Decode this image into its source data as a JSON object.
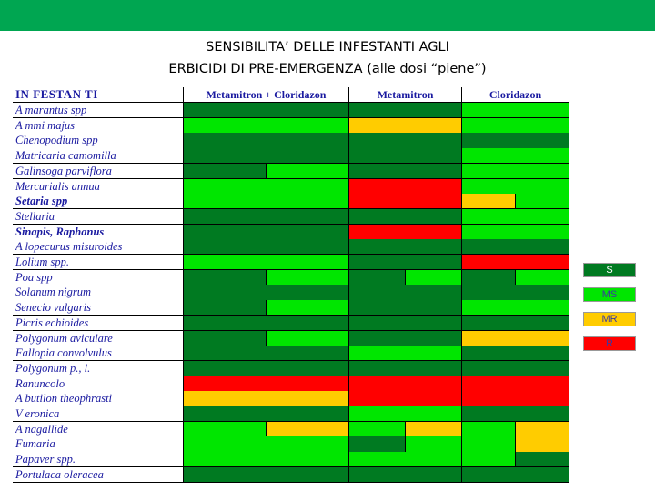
{
  "title": {
    "line1": "SENSIBILITA’ DELLE INFESTANTI AGLI",
    "line2": "ERBICIDI DI PRE-EMERGENZA (alle dosi “piene”)"
  },
  "colors": {
    "S": "#007a21",
    "MS": "#00e600",
    "MR": "#ffcc00",
    "R": "#ff0000"
  },
  "table": {
    "header": [
      "IN FESTAN TI",
      "Metamitron + Cloridazon",
      "Metamitron",
      "Cloridazon"
    ],
    "rows": [
      {
        "name": "A marantus spp",
        "bold": false,
        "cells": [
          [
            "S"
          ],
          [
            "S"
          ],
          [
            "MS"
          ]
        ]
      },
      {
        "name": "A mmi majus",
        "bold": false,
        "cells": [
          [
            "MS"
          ],
          [
            "MR"
          ],
          [
            "MS"
          ]
        ]
      },
      {
        "name": "Chenopodium spp",
        "bold": false,
        "cells": [
          [
            "S"
          ],
          [
            "S"
          ],
          [
            "S"
          ]
        ]
      },
      {
        "name": "Matricaria camomilla",
        "bold": false,
        "cells": [
          [
            "S"
          ],
          [
            "S"
          ],
          [
            "MS"
          ]
        ]
      },
      {
        "name": "Galinsoga parviflora",
        "bold": false,
        "cells": [
          [
            "S",
            "MS"
          ],
          [
            "S"
          ],
          [
            "MS"
          ]
        ]
      },
      {
        "name": "Mercurialis annua",
        "bold": false,
        "cells": [
          [
            "MS"
          ],
          [
            "R"
          ],
          [
            "MS"
          ]
        ]
      },
      {
        "name": "Setaria spp",
        "bold": true,
        "cells": [
          [
            "MS"
          ],
          [
            "R"
          ],
          [
            "MR",
            "MS"
          ]
        ]
      },
      {
        "name": "Stellaria",
        "bold": false,
        "cells": [
          [
            "S"
          ],
          [
            "S"
          ],
          [
            "MS"
          ]
        ]
      },
      {
        "name": "Sinapis, Raphanus",
        "bold": true,
        "cells": [
          [
            "S"
          ],
          [
            "R"
          ],
          [
            "MS"
          ]
        ]
      },
      {
        "name": "A lopecurus misuroides",
        "bold": false,
        "cells": [
          [
            "S"
          ],
          [
            "S"
          ],
          [
            "S"
          ]
        ]
      },
      {
        "name": "Lolium spp.",
        "bold": false,
        "cells": [
          [
            "MS"
          ],
          [
            "S"
          ],
          [
            "R"
          ]
        ]
      },
      {
        "name": "Poa spp",
        "bold": false,
        "cells": [
          [
            "S",
            "MS"
          ],
          [
            "S",
            "MS"
          ],
          [
            "S",
            "MS"
          ]
        ]
      },
      {
        "name": "Solanum nigrum",
        "bold": false,
        "cells": [
          [
            "S"
          ],
          [
            "S"
          ],
          [
            "S"
          ]
        ]
      },
      {
        "name": "Senecio vulgaris",
        "bold": false,
        "cells": [
          [
            "S",
            "MS"
          ],
          [
            "S"
          ],
          [
            "MS"
          ]
        ]
      },
      {
        "name": "Picris echioides",
        "bold": false,
        "cells": [
          [
            "S"
          ],
          [
            "S"
          ],
          [
            "S"
          ]
        ]
      },
      {
        "name": "Polygonum aviculare",
        "bold": false,
        "cells": [
          [
            "S",
            "MS"
          ],
          [
            "S"
          ],
          [
            "MR"
          ]
        ]
      },
      {
        "name": "Fallopia convolvulus",
        "bold": false,
        "cells": [
          [
            "S"
          ],
          [
            "MS"
          ],
          [
            "S"
          ]
        ]
      },
      {
        "name": "Polygonum p., l.",
        "bold": false,
        "cells": [
          [
            "S"
          ],
          [
            "S"
          ],
          [
            "S"
          ]
        ]
      },
      {
        "name": "Ranuncolo",
        "bold": false,
        "cells": [
          [
            "R"
          ],
          [
            "R"
          ],
          [
            "R"
          ]
        ]
      },
      {
        "name": "A butilon theophrasti",
        "bold": false,
        "cells": [
          [
            "MR"
          ],
          [
            "R"
          ],
          [
            "R"
          ]
        ]
      },
      {
        "name": "V eronica",
        "bold": false,
        "cells": [
          [
            "S"
          ],
          [
            "MS"
          ],
          [
            "S"
          ]
        ]
      },
      {
        "name": "A nagallide",
        "bold": false,
        "cells": [
          [
            "MS",
            "MR"
          ],
          [
            "MS",
            "MR"
          ],
          [
            "MS",
            "MR"
          ]
        ]
      },
      {
        "name": "Fumaria",
        "bold": false,
        "cells": [
          [
            "MS"
          ],
          [
            "S",
            "MS"
          ],
          [
            "MS",
            "MR"
          ]
        ]
      },
      {
        "name": "Papaver spp.",
        "bold": false,
        "cells": [
          [
            "MS"
          ],
          [
            "MS"
          ],
          [
            "MS",
            "S"
          ]
        ]
      },
      {
        "name": "Portulaca oleracea",
        "bold": false,
        "cells": [
          [
            "S"
          ],
          [
            "S"
          ],
          [
            "S"
          ]
        ]
      }
    ]
  },
  "legend": [
    {
      "label": "S",
      "key": "S",
      "text_color": "#ffffff"
    },
    {
      "label": "MS",
      "key": "MS",
      "text_color": "#3a3aa0"
    },
    {
      "label": "MR",
      "key": "MR",
      "text_color": "#3a3aa0"
    },
    {
      "label": "R",
      "key": "R",
      "text_color": "#3a3aa0"
    }
  ]
}
